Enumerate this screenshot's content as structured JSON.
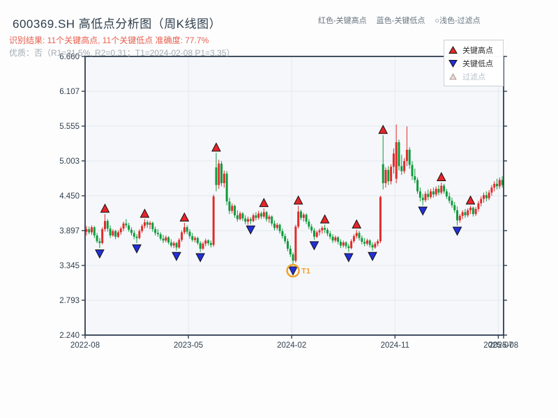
{
  "header": {
    "title": "600369.SH 高低点分析图（周K线图）",
    "result_line": "识别结果: 11个关键高点, 11个关键低点  准确度: 77.7%",
    "quality_line": "优质：否（R1=31.5%, R2=0.31；T1=2024-02-08 P1=3.35）",
    "color_key": [
      {
        "label": "红色-关键高点"
      },
      {
        "label": "蓝色-关键低点"
      },
      {
        "label": "○浅色-过滤点"
      }
    ]
  },
  "legend": {
    "key_high": "关键高点",
    "key_low": "关键低点",
    "filtered": "过滤点"
  },
  "colors": {
    "up_candle": "#e02b2b",
    "down_candle": "#0f9b3c",
    "high_marker": "#e8262a",
    "low_marker": "#2230d9",
    "filtered_marker": "#f7d4cd",
    "annotation": "#f0a22e",
    "axis": "#2e3d4f",
    "grid": "#e4e9ef",
    "plot_bg": "#f5f7fa"
  },
  "chart_data": {
    "type": "candlestick",
    "symbol": "600369.SH",
    "frequency": "weekly",
    "title": "600369.SH 高低点分析图（周K线图）",
    "ylim": [
      2.24,
      6.66
    ],
    "y_ticks": [
      "6.660",
      "6.107",
      "5.555",
      "5.003",
      "4.450",
      "3.897",
      "3.345",
      "2.793",
      "2.240"
    ],
    "x_ticks": [
      {
        "label": "2022-08",
        "week": 0,
        "grid": false
      },
      {
        "label": "2023-05",
        "week": 39,
        "grid": true
      },
      {
        "label": "2024-02",
        "week": 78,
        "grid": true
      },
      {
        "label": "2024-11",
        "week": 117,
        "grid": true
      },
      {
        "label": "2025-07",
        "week": 156,
        "grid": true
      },
      {
        "label": "2025-08",
        "week": 158,
        "grid": false
      }
    ],
    "ohlc": [
      [
        3.88,
        3.97,
        3.82,
        3.92
      ],
      [
        3.92,
        3.96,
        3.84,
        3.87
      ],
      [
        3.87,
        3.98,
        3.83,
        3.95
      ],
      [
        3.95,
        3.97,
        3.78,
        3.82
      ],
      [
        3.82,
        3.86,
        3.7,
        3.73
      ],
      [
        3.73,
        3.78,
        3.62,
        3.7
      ],
      [
        3.7,
        3.95,
        3.68,
        3.92
      ],
      [
        3.92,
        4.16,
        3.88,
        4.05
      ],
      [
        4.05,
        4.08,
        3.88,
        3.93
      ],
      [
        3.93,
        3.98,
        3.78,
        3.82
      ],
      [
        3.82,
        3.92,
        3.8,
        3.89
      ],
      [
        3.89,
        3.91,
        3.76,
        3.8
      ],
      [
        3.8,
        3.9,
        3.78,
        3.87
      ],
      [
        3.87,
        3.96,
        3.83,
        3.93
      ],
      [
        3.93,
        4.04,
        3.89,
        4.01
      ],
      [
        4.01,
        4.08,
        3.94,
        3.98
      ],
      [
        3.98,
        4.02,
        3.88,
        3.91
      ],
      [
        3.91,
        3.95,
        3.82,
        3.86
      ],
      [
        3.86,
        3.9,
        3.76,
        3.8
      ],
      [
        3.8,
        3.84,
        3.7,
        3.78
      ],
      [
        3.78,
        3.92,
        3.76,
        3.89
      ],
      [
        3.89,
        4.0,
        3.86,
        3.97
      ],
      [
        3.97,
        4.08,
        3.93,
        4.03
      ],
      [
        4.03,
        4.06,
        3.94,
        3.99
      ],
      [
        3.99,
        4.05,
        3.92,
        4.02
      ],
      [
        4.02,
        4.04,
        3.88,
        3.92
      ],
      [
        3.92,
        3.96,
        3.82,
        3.86
      ],
      [
        3.86,
        3.92,
        3.8,
        3.84
      ],
      [
        3.84,
        3.87,
        3.74,
        3.77
      ],
      [
        3.77,
        3.83,
        3.7,
        3.74
      ],
      [
        3.74,
        3.82,
        3.71,
        3.79
      ],
      [
        3.79,
        3.81,
        3.68,
        3.71
      ],
      [
        3.71,
        3.76,
        3.63,
        3.66
      ],
      [
        3.66,
        3.73,
        3.62,
        3.7
      ],
      [
        3.7,
        3.72,
        3.58,
        3.63
      ],
      [
        3.63,
        3.78,
        3.61,
        3.75
      ],
      [
        3.75,
        3.9,
        3.72,
        3.87
      ],
      [
        3.87,
        4.02,
        3.84,
        3.95
      ],
      [
        3.95,
        3.98,
        3.84,
        3.88
      ],
      [
        3.88,
        3.92,
        3.77,
        3.81
      ],
      [
        3.81,
        3.86,
        3.72,
        3.75
      ],
      [
        3.75,
        3.81,
        3.71,
        3.78
      ],
      [
        3.78,
        3.8,
        3.67,
        3.7
      ],
      [
        3.7,
        3.73,
        3.56,
        3.61
      ],
      [
        3.61,
        3.72,
        3.59,
        3.69
      ],
      [
        3.69,
        3.77,
        3.65,
        3.74
      ],
      [
        3.74,
        3.76,
        3.66,
        3.7
      ],
      [
        3.7,
        3.74,
        3.63,
        3.67
      ],
      [
        3.67,
        4.47,
        3.64,
        4.44
      ],
      [
        4.9,
        5.13,
        4.52,
        4.62
      ],
      [
        4.62,
        5.02,
        4.56,
        4.96
      ],
      [
        4.96,
        5.0,
        4.6,
        4.65
      ],
      [
        4.65,
        4.85,
        4.58,
        4.8
      ],
      [
        4.8,
        4.84,
        4.3,
        4.36
      ],
      [
        4.36,
        4.42,
        4.16,
        4.21
      ],
      [
        4.21,
        4.33,
        4.17,
        4.29
      ],
      [
        4.29,
        4.31,
        4.1,
        4.14
      ],
      [
        4.14,
        4.22,
        4.04,
        4.08
      ],
      [
        4.08,
        4.2,
        4.06,
        4.17
      ],
      [
        4.17,
        4.19,
        4.05,
        4.09
      ],
      [
        4.09,
        4.14,
        4.0,
        4.04
      ],
      [
        4.04,
        4.12,
        3.99,
        4.08
      ],
      [
        4.08,
        4.11,
        4.0,
        4.05
      ],
      [
        4.05,
        4.17,
        4.03,
        4.14
      ],
      [
        4.14,
        4.19,
        4.06,
        4.1
      ],
      [
        4.1,
        4.21,
        4.07,
        4.17
      ],
      [
        4.17,
        4.2,
        4.08,
        4.12
      ],
      [
        4.12,
        4.25,
        4.09,
        4.19
      ],
      [
        4.19,
        4.21,
        4.04,
        4.08
      ],
      [
        4.08,
        4.15,
        4.02,
        4.12
      ],
      [
        4.12,
        4.14,
        3.97,
        4.01
      ],
      [
        4.01,
        4.06,
        3.9,
        3.94
      ],
      [
        3.94,
        4.02,
        3.91,
        3.99
      ],
      [
        3.99,
        4.01,
        3.85,
        3.89
      ],
      [
        3.89,
        3.93,
        3.77,
        3.81
      ],
      [
        3.81,
        3.85,
        3.69,
        3.73
      ],
      [
        3.73,
        3.77,
        3.57,
        3.61
      ],
      [
        3.61,
        3.66,
        3.48,
        3.52
      ],
      [
        3.52,
        3.55,
        3.35,
        3.42
      ],
      [
        3.42,
        3.99,
        3.39,
        3.96
      ],
      [
        3.96,
        4.29,
        3.93,
        4.2
      ],
      [
        4.2,
        4.23,
        4.06,
        4.1
      ],
      [
        4.1,
        4.18,
        4.04,
        4.15
      ],
      [
        4.15,
        4.17,
        4.0,
        4.04
      ],
      [
        4.04,
        4.08,
        3.92,
        3.96
      ],
      [
        3.96,
        4.0,
        3.86,
        3.9
      ],
      [
        3.9,
        3.94,
        3.75,
        3.8
      ],
      [
        3.8,
        3.9,
        3.78,
        3.87
      ],
      [
        3.87,
        3.93,
        3.82,
        3.9
      ],
      [
        3.9,
        3.97,
        3.85,
        3.94
      ],
      [
        3.94,
        3.99,
        3.86,
        3.91
      ],
      [
        3.91,
        3.94,
        3.81,
        3.85
      ],
      [
        3.85,
        3.89,
        3.76,
        3.8
      ],
      [
        3.8,
        3.84,
        3.7,
        3.74
      ],
      [
        3.74,
        3.82,
        3.71,
        3.79
      ],
      [
        3.79,
        3.81,
        3.68,
        3.72
      ],
      [
        3.72,
        3.76,
        3.62,
        3.66
      ],
      [
        3.66,
        3.74,
        3.63,
        3.71
      ],
      [
        3.71,
        3.73,
        3.61,
        3.65
      ],
      [
        3.65,
        3.69,
        3.56,
        3.62
      ],
      [
        3.62,
        3.76,
        3.6,
        3.73
      ],
      [
        3.73,
        3.84,
        3.7,
        3.81
      ],
      [
        3.81,
        3.91,
        3.77,
        3.86
      ],
      [
        3.86,
        3.89,
        3.74,
        3.78
      ],
      [
        3.78,
        3.82,
        3.68,
        3.72
      ],
      [
        3.72,
        3.78,
        3.65,
        3.69
      ],
      [
        3.69,
        3.77,
        3.66,
        3.74
      ],
      [
        3.74,
        3.76,
        3.63,
        3.67
      ],
      [
        3.67,
        3.71,
        3.58,
        3.63
      ],
      [
        3.63,
        3.72,
        3.61,
        3.69
      ],
      [
        3.69,
        3.76,
        3.65,
        3.73
      ],
      [
        3.73,
        4.45,
        3.7,
        4.43
      ],
      [
        4.95,
        5.41,
        4.55,
        4.65
      ],
      [
        4.65,
        4.9,
        4.58,
        4.86
      ],
      [
        4.86,
        4.92,
        4.62,
        4.68
      ],
      [
        4.68,
        4.95,
        4.63,
        4.91
      ],
      [
        4.91,
        5.2,
        4.8,
        5.12
      ],
      [
        4.72,
        5.58,
        4.65,
        5.3
      ],
      [
        5.3,
        5.34,
        4.85,
        4.92
      ],
      [
        4.92,
        5.1,
        4.78,
        4.84
      ],
      [
        4.84,
        5.05,
        4.8,
        5.0
      ],
      [
        5.0,
        5.55,
        4.92,
        5.18
      ],
      [
        5.18,
        5.22,
        4.88,
        4.94
      ],
      [
        4.94,
        5.0,
        4.7,
        4.76
      ],
      [
        4.76,
        4.88,
        4.65,
        4.7
      ],
      [
        4.7,
        4.74,
        4.48,
        4.52
      ],
      [
        4.52,
        4.58,
        4.36,
        4.42
      ],
      [
        4.42,
        4.48,
        4.3,
        4.38
      ],
      [
        4.38,
        4.52,
        4.35,
        4.48
      ],
      [
        4.48,
        4.55,
        4.38,
        4.43
      ],
      [
        4.43,
        4.56,
        4.4,
        4.52
      ],
      [
        4.52,
        4.58,
        4.42,
        4.47
      ],
      [
        4.47,
        4.6,
        4.44,
        4.56
      ],
      [
        4.56,
        4.62,
        4.46,
        4.5
      ],
      [
        4.5,
        4.66,
        4.47,
        4.61
      ],
      [
        4.61,
        4.64,
        4.48,
        4.52
      ],
      [
        4.52,
        4.56,
        4.4,
        4.44
      ],
      [
        4.44,
        4.5,
        4.33,
        4.37
      ],
      [
        4.37,
        4.42,
        4.26,
        4.3
      ],
      [
        4.3,
        4.35,
        4.18,
        4.22
      ],
      [
        4.22,
        4.28,
        3.98,
        4.06
      ],
      [
        4.06,
        4.16,
        4.02,
        4.13
      ],
      [
        4.13,
        4.22,
        4.08,
        4.19
      ],
      [
        4.19,
        4.24,
        4.1,
        4.14
      ],
      [
        4.14,
        4.25,
        4.11,
        4.22
      ],
      [
        4.22,
        4.29,
        4.16,
        4.26
      ],
      [
        4.26,
        4.28,
        4.12,
        4.16
      ],
      [
        4.16,
        4.27,
        4.13,
        4.24
      ],
      [
        4.24,
        4.37,
        4.2,
        4.33
      ],
      [
        4.33,
        4.44,
        4.28,
        4.4
      ],
      [
        4.4,
        4.5,
        4.34,
        4.46
      ],
      [
        4.46,
        4.52,
        4.36,
        4.41
      ],
      [
        4.41,
        4.54,
        4.38,
        4.5
      ],
      [
        4.5,
        4.62,
        4.45,
        4.58
      ],
      [
        4.58,
        4.68,
        4.52,
        4.64
      ],
      [
        4.64,
        4.72,
        4.55,
        4.6
      ],
      [
        4.6,
        4.74,
        4.56,
        4.7
      ],
      [
        4.7,
        4.76,
        4.58,
        4.62
      ]
    ],
    "key_highs": [
      {
        "week": 7,
        "price": 4.16
      },
      {
        "week": 22,
        "price": 4.08
      },
      {
        "week": 37,
        "price": 4.02
      },
      {
        "week": 49,
        "price": 5.13
      },
      {
        "week": 67,
        "price": 4.25
      },
      {
        "week": 80,
        "price": 4.29
      },
      {
        "week": 90,
        "price": 3.99
      },
      {
        "week": 102,
        "price": 3.91
      },
      {
        "week": 112,
        "price": 5.41
      },
      {
        "week": 134,
        "price": 4.66
      },
      {
        "week": 145,
        "price": 4.29
      }
    ],
    "key_lows": [
      {
        "week": 5,
        "price": 3.62
      },
      {
        "week": 19,
        "price": 3.7
      },
      {
        "week": 34,
        "price": 3.58
      },
      {
        "week": 43,
        "price": 3.56
      },
      {
        "week": 62,
        "price": 4.0
      },
      {
        "week": 78,
        "price": 3.35
      },
      {
        "week": 86,
        "price": 3.75
      },
      {
        "week": 99,
        "price": 3.56
      },
      {
        "week": 108,
        "price": 3.58
      },
      {
        "week": 127,
        "price": 4.3
      },
      {
        "week": 140,
        "price": 3.98
      }
    ],
    "annotation": {
      "label": "T1",
      "week": 78,
      "price": 3.35,
      "date": "2024-02-08"
    }
  }
}
